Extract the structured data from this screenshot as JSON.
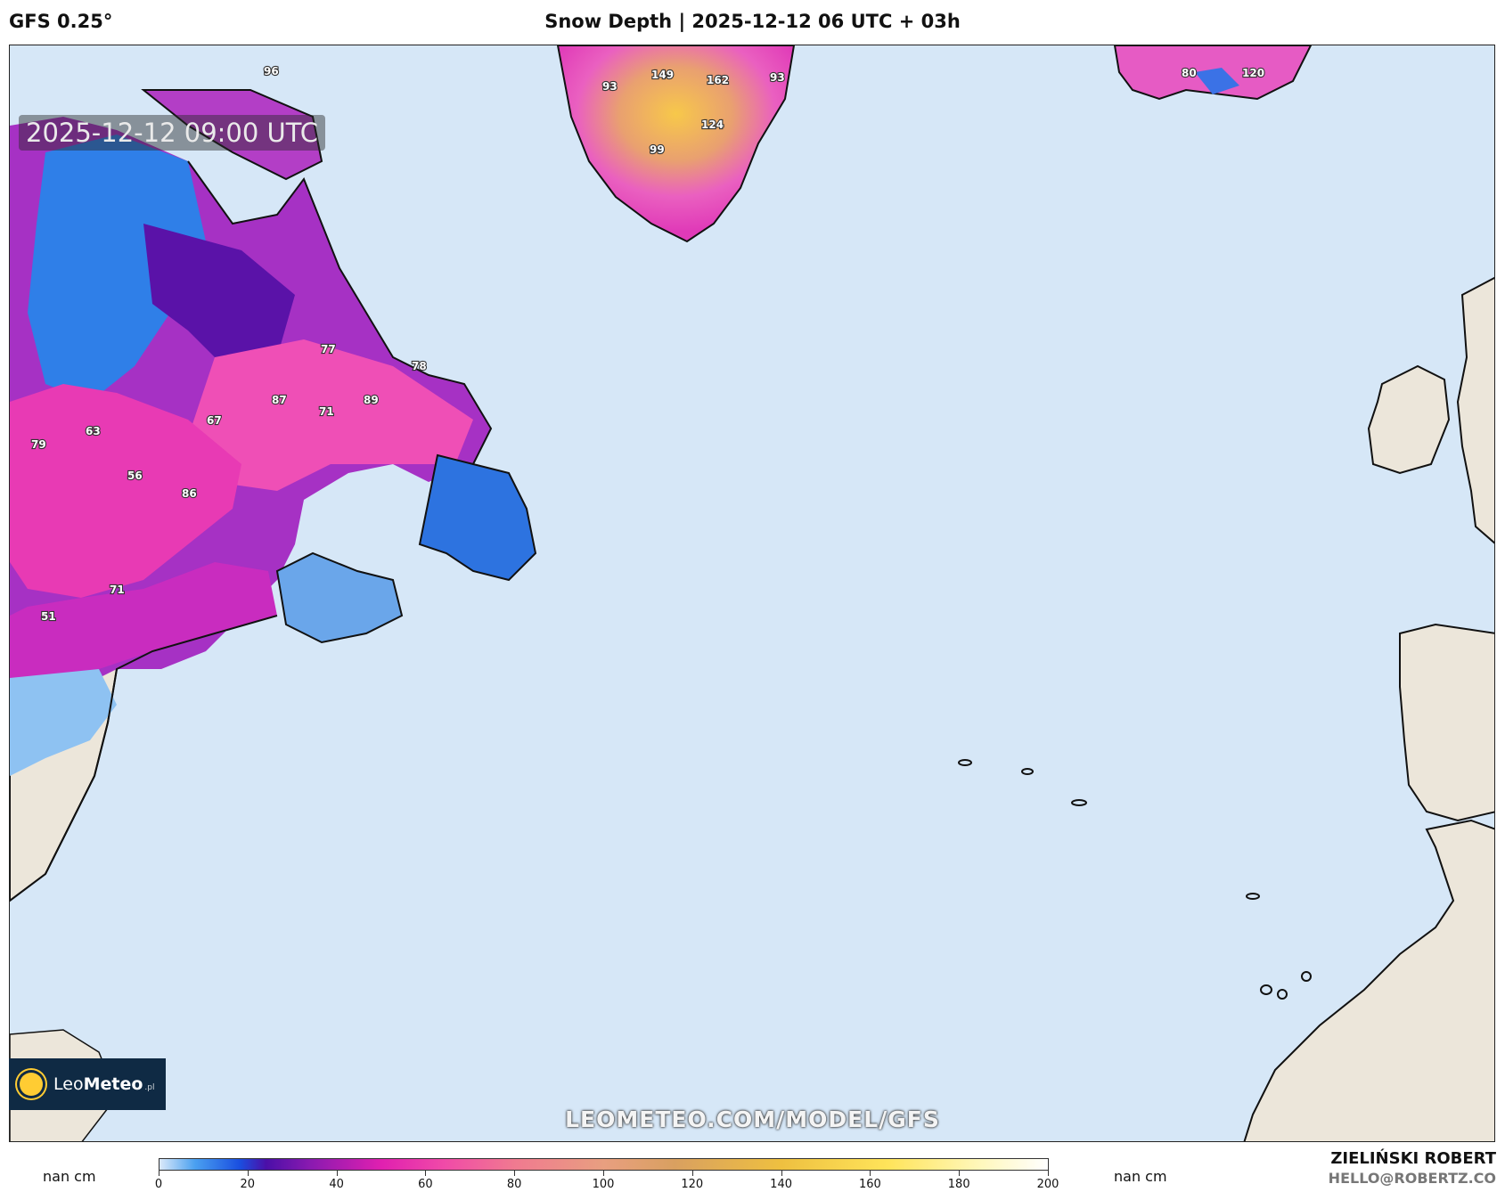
{
  "header": {
    "model": "GFS 0.25°",
    "title": "Snow Depth | 2025-12-12 06 UTC + 03h"
  },
  "map": {
    "valid_time": "2025-12-12 09:00 UTC",
    "ocean_color": "#d6e7f7",
    "land_color": "#ece6da",
    "value_labels": [
      "96",
      "93",
      "149",
      "162",
      "93",
      "124",
      "99",
      "80",
      "120",
      "77",
      "78",
      "87",
      "89",
      "71",
      "67",
      "63",
      "79",
      "56",
      "86",
      "71",
      "51"
    ]
  },
  "branding": {
    "logo_name": "LeoMeteo",
    "logo_prefix": "Leo",
    "logo_bold": "Meteo",
    "logo_suffix": ".pl",
    "url": "LEOMETEO.COM/MODEL/GFS"
  },
  "colorbar": {
    "unit_left": "nan cm",
    "unit_right": "nan cm",
    "ticks": [
      "0",
      "20",
      "40",
      "60",
      "80",
      "100",
      "120",
      "140",
      "160",
      "180",
      "200"
    ]
  },
  "author": {
    "name": "ZIELIŃSKI ROBERT",
    "email": "HELLO@ROBERTZ.CO"
  }
}
